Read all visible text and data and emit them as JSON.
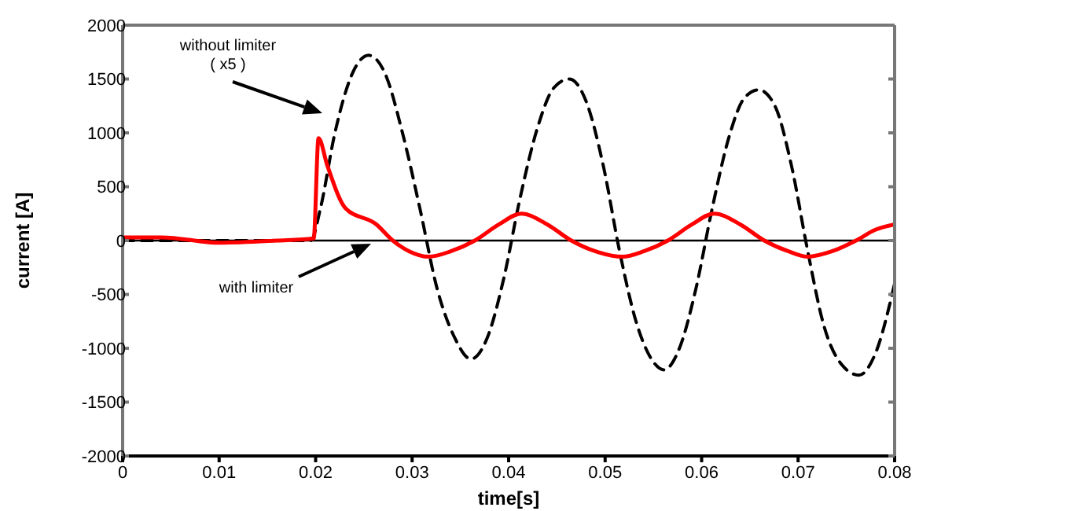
{
  "chart_data": {
    "type": "line",
    "xlabel": "time[s]",
    "ylabel": "current [A]",
    "xlim": [
      0,
      0.08
    ],
    "xticks": [
      0,
      0.01,
      0.02,
      0.03,
      0.04,
      0.05,
      0.06,
      0.07,
      0.08
    ],
    "ylim": [
      -2000,
      2000
    ],
    "yticks": [
      -2000,
      -1500,
      -1000,
      -500,
      0,
      500,
      1000,
      1500,
      2000
    ],
    "marker": "none",
    "ref_lines": [
      {
        "axis": "y",
        "value": 0,
        "color": "#000000",
        "line_style": "solid"
      }
    ],
    "annotations": [
      "without limiter\n( x5 )",
      "with limiter"
    ],
    "series": [
      {
        "color": "#000000",
        "line_style": "dashed",
        "x": [
          0,
          0.01,
          0.0195,
          0.0205,
          0.022,
          0.0238,
          0.0255,
          0.0272,
          0.029,
          0.0308,
          0.0326,
          0.0344,
          0.0361,
          0.0378,
          0.0395,
          0.0412,
          0.043,
          0.0447,
          0.0463,
          0.048,
          0.0498,
          0.0515,
          0.0532,
          0.0548,
          0.0561,
          0.0577,
          0.0594,
          0.0611,
          0.0628,
          0.0644,
          0.0659,
          0.0676,
          0.0693,
          0.071,
          0.0727,
          0.0745,
          0.0763,
          0.078,
          0.08
        ],
        "values": [
          0,
          0,
          0,
          300,
          1000,
          1550,
          1720,
          1550,
          1000,
          300,
          -450,
          -900,
          -1100,
          -900,
          -350,
          400,
          1050,
          1420,
          1500,
          1300,
          700,
          -100,
          -750,
          -1100,
          -1200,
          -1000,
          -450,
          300,
          950,
          1320,
          1400,
          1250,
          700,
          -100,
          -800,
          -1150,
          -1250,
          -1050,
          -400
        ]
      },
      {
        "color": "#ff0000",
        "line_style": "solid",
        "x": [
          0,
          0.004,
          0.01,
          0.016,
          0.0198,
          0.0203,
          0.0212,
          0.0231,
          0.0263,
          0.028,
          0.0297,
          0.0317,
          0.034,
          0.0365,
          0.039,
          0.0413,
          0.044,
          0.0465,
          0.049,
          0.0518,
          0.054,
          0.0565,
          0.059,
          0.0613,
          0.064,
          0.0665,
          0.069,
          0.071,
          0.0735,
          0.076,
          0.078,
          0.08
        ],
        "values": [
          30,
          30,
          -20,
          0,
          20,
          950,
          700,
          300,
          150,
          0,
          -100,
          -150,
          -100,
          0,
          150,
          250,
          150,
          0,
          -100,
          -150,
          -100,
          0,
          150,
          250,
          150,
          0,
          -100,
          -150,
          -100,
          0,
          100,
          150
        ]
      }
    ]
  }
}
